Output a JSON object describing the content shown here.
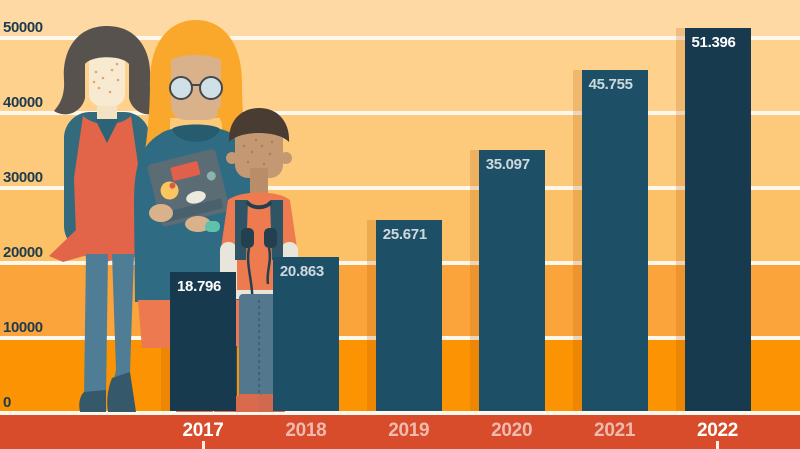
{
  "chart_data": {
    "type": "bar",
    "title": "",
    "categories": [
      "2017",
      "2018",
      "2019",
      "2020",
      "2021",
      "2022"
    ],
    "values": [
      18796,
      20863,
      25671,
      35097,
      45755,
      51396
    ],
    "value_labels": [
      "18.796",
      "20.863",
      "25.671",
      "35.097",
      "45.755",
      "51.396"
    ],
    "highlighted_categories": [
      "2017",
      "2022"
    ],
    "yticks": [
      0,
      10000,
      20000,
      30000,
      40000,
      50000
    ],
    "ytick_labels": [
      "0",
      "10000",
      "20000",
      "30000",
      "40000",
      "50000"
    ],
    "ylim": [
      0,
      52000
    ],
    "grid": "horizontal white lines on banded orange background",
    "legend": "none",
    "x_axis_tick_marks_under": [
      "2017",
      "2022"
    ]
  },
  "colors": {
    "bar": "#1d5066",
    "bar_highlighted": "#183a4f",
    "axis_text": "#1e3c4e",
    "value_text": "#ffffff",
    "value_text_muted": "rgba(255,255,255,0.78)",
    "year_text": "#ffffff",
    "year_text_muted": "rgba(255,255,255,0.62)",
    "bottom_band": "#d84b2b",
    "gridline": "#fdf7ec",
    "bands_bottom_to_top": [
      "#fb9303",
      "#fba43c",
      "#fcc166",
      "#fcca7a",
      "#fed28c",
      "#ffd9a3"
    ],
    "bar_shadow": "rgba(185,90,0,0.22)"
  },
  "illustration": {
    "description": "Three flat-style people standing at the left of the chart",
    "figures": [
      "woman in red dress with dark bob haircut",
      "person with orange braided hair, round glasses, teal hoodie, holding laptop with stickers",
      "boy with headphones, orange t-shirt and blue jeans"
    ]
  }
}
